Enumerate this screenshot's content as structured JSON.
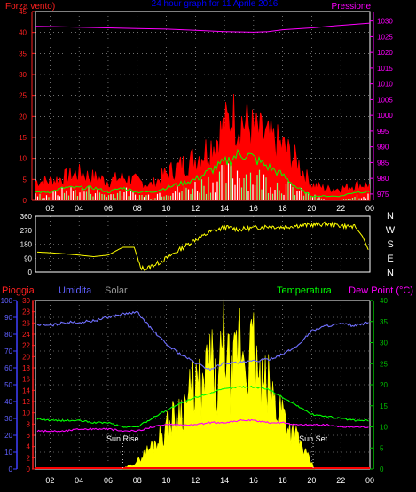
{
  "colors": {
    "wind": "#ff0000",
    "gust_fill": "#ff0000",
    "wind_avg": "#00ff00",
    "wind_low": "#ffffff",
    "wind_low2": "#80ff80",
    "pressure": "#ff00ff",
    "direction": "#ffff00",
    "humidity": "#7070ff",
    "solar": "#ffff00",
    "temperature": "#00ff00",
    "dewpoint": "#ff00ff",
    "rain": "#ff0000",
    "axis_rain": "#ff2020",
    "axis_humidity": "#4040ff",
    "axis_pressure": "#ff00ff",
    "axis_temp": "#00c000",
    "grid": "#ffffff",
    "text": "#ffffff",
    "title": "#0000ff"
  },
  "chart_data": [
    {
      "id": "wind-pressure",
      "type": "area",
      "title": "24 hour graph for 11 Aprile 2016",
      "left_label": "Forza vento",
      "left_label_suffix": ")",
      "right_label": "Pressione",
      "left_ticks": [
        "45",
        "40",
        "35",
        "30",
        "25",
        "20",
        "15",
        "10",
        "5",
        "0"
      ],
      "left_range": [
        0,
        45
      ],
      "right_ticks": [
        "1030",
        "1025",
        "1020",
        "1015",
        "1010",
        "1005",
        "1000",
        "995",
        "990",
        "985",
        "980",
        "975"
      ],
      "right_range": [
        973,
        1033
      ],
      "x_ticks": [
        "02",
        "04",
        "06",
        "08",
        "10",
        "12",
        "14",
        "16",
        "18",
        "20",
        "22",
        "00"
      ],
      "x_range": [
        1,
        24
      ],
      "series": [
        {
          "key": "pressure",
          "x": [
            1,
            2,
            4,
            6,
            8,
            10,
            12,
            14,
            16,
            17,
            18,
            20,
            22,
            24
          ],
          "values": [
            1028.3,
            1028.2,
            1028.0,
            1027.8,
            1027.6,
            1027.4,
            1027.0,
            1026.6,
            1026.4,
            1026.6,
            1027.2,
            1027.8,
            1028.6,
            1029.3
          ]
        },
        {
          "key": "gust",
          "x": [
            1,
            2,
            3,
            4,
            5,
            6,
            7,
            8,
            9,
            10,
            11,
            12,
            13,
            14,
            14.5,
            15,
            15.5,
            16,
            17,
            18,
            19,
            20,
            21,
            22,
            23,
            24
          ],
          "values": [
            5,
            5,
            6,
            7,
            6,
            5,
            6,
            5,
            4,
            7,
            9,
            11,
            14,
            19,
            22,
            21,
            20,
            18,
            16,
            14,
            10,
            4,
            3,
            3,
            4,
            4
          ]
        },
        {
          "key": "average",
          "x": [
            1,
            2,
            3,
            4,
            5,
            6,
            7,
            8,
            9,
            10,
            11,
            12,
            13,
            14,
            14.5,
            15,
            15.5,
            16,
            17,
            18,
            19,
            20,
            21,
            22,
            23,
            24
          ],
          "values": [
            2,
            2,
            3,
            3,
            3,
            2,
            3,
            2,
            2,
            3,
            4,
            5,
            7,
            9,
            10,
            11,
            11,
            10,
            8,
            6,
            3,
            1,
            1,
            1,
            2,
            2
          ]
        },
        {
          "key": "low",
          "x": [
            1,
            2,
            3,
            4,
            5,
            6,
            7,
            8,
            9,
            10,
            11,
            12,
            13,
            14,
            15,
            16,
            17,
            18,
            19,
            20,
            21,
            22,
            23,
            24
          ],
          "values": [
            1,
            1,
            2,
            2,
            2,
            1,
            2,
            1,
            1,
            2,
            2,
            3,
            4,
            5,
            6,
            5,
            4,
            3,
            2,
            1,
            0,
            0,
            1,
            1
          ]
        }
      ]
    },
    {
      "id": "direction",
      "type": "line",
      "left_ticks": [
        "360",
        "270",
        "180",
        "90",
        "0"
      ],
      "left_range": [
        0,
        360
      ],
      "right_ticks": [
        "N",
        "W",
        "S",
        "E",
        "N"
      ],
      "x_range": [
        1,
        24
      ],
      "series": [
        {
          "key": "direction",
          "x": [
            1,
            2,
            3,
            4,
            5,
            6,
            7,
            7.8,
            8.2,
            8.6,
            9,
            9.5,
            10,
            10.5,
            11,
            11.5,
            12,
            12.5,
            13,
            13.5,
            14,
            15,
            16,
            17,
            18,
            19,
            20,
            21,
            22,
            23,
            23.5,
            24
          ],
          "values": [
            130,
            125,
            118,
            110,
            100,
            110,
            160,
            160,
            30,
            20,
            40,
            60,
            90,
            120,
            150,
            180,
            210,
            230,
            260,
            270,
            290,
            275,
            285,
            295,
            290,
            300,
            305,
            310,
            300,
            290,
            230,
            120
          ]
        }
      ]
    },
    {
      "id": "climate",
      "type": "line",
      "label_rain": "Pioggia",
      "label_humidity": "Umidita",
      "label_solar": "Solar",
      "label_temp": "Temperatura",
      "label_dew": "Dew Point (°C)",
      "sunrise_label": "Sun Rise",
      "sunset_label": "Sun Set",
      "sunrise_x": 7.0,
      "sunset_x": 20.1,
      "humidity_ticks": [
        "100",
        "90",
        "80",
        "70",
        "60",
        "50",
        "40",
        "30",
        "20",
        "10",
        "0"
      ],
      "humidity_range": [
        0,
        100
      ],
      "rain_ticks": [
        "30",
        "28",
        "26",
        "24",
        "22",
        "20",
        "18",
        "16",
        "14",
        "12",
        "10",
        "8",
        "6",
        "4",
        "2",
        "0"
      ],
      "rain_range": [
        0,
        30
      ],
      "temp_ticks": [
        "40",
        "35",
        "30",
        "25",
        "20",
        "15",
        "10",
        "5",
        "0"
      ],
      "temp_range": [
        0,
        40
      ],
      "x_ticks": [
        "02",
        "04",
        "06",
        "08",
        "10",
        "12",
        "14",
        "16",
        "18",
        "20",
        "22",
        "00"
      ],
      "x_range": [
        1,
        24
      ],
      "series": [
        {
          "key": "humidity",
          "x": [
            1,
            2,
            3,
            4,
            5,
            6,
            7,
            8,
            9,
            10,
            11,
            12,
            13,
            14,
            15,
            16,
            17,
            18,
            19,
            20,
            21,
            22,
            23,
            24
          ],
          "values": [
            86,
            85,
            87,
            87,
            88,
            90,
            92,
            93,
            83,
            74,
            68,
            63,
            59,
            63,
            63,
            64,
            65,
            68,
            73,
            82,
            85,
            86,
            85,
            87
          ]
        },
        {
          "key": "temperature",
          "x": [
            1,
            2,
            3,
            4,
            5,
            6,
            7,
            8,
            9,
            10,
            11,
            12,
            13,
            14,
            15,
            16,
            17,
            18,
            19,
            20,
            21,
            22,
            23,
            24
          ],
          "values": [
            12,
            11.5,
            11.5,
            11.5,
            11,
            11,
            10,
            10,
            12,
            14,
            15.5,
            17,
            18,
            19,
            19.5,
            19.5,
            19,
            17,
            15,
            13,
            12.5,
            12,
            11.5,
            11.5
          ]
        },
        {
          "key": "dewpoint",
          "x": [
            1,
            2,
            3,
            4,
            5,
            6,
            7,
            8,
            9,
            10,
            11,
            12,
            13,
            14,
            15,
            16,
            17,
            18,
            19,
            20,
            21,
            22,
            23,
            24
          ],
          "values": [
            9,
            9,
            9,
            9.5,
            9.5,
            9.5,
            9,
            9,
            10,
            10.5,
            10.5,
            10.5,
            11,
            11,
            11.5,
            11.5,
            11,
            11,
            10.5,
            10.5,
            10.5,
            10,
            10,
            10
          ]
        },
        {
          "key": "solar",
          "x": [
            7,
            8,
            9,
            10,
            10.5,
            11,
            11.5,
            12,
            12.5,
            13,
            13.5,
            14,
            14.5,
            15,
            15.5,
            16,
            16.5,
            17,
            17.5,
            18,
            18.5,
            19,
            19.5,
            20,
            20.2
          ],
          "values": [
            0,
            5,
            16,
            28,
            36,
            42,
            48,
            60,
            52,
            78,
            50,
            92,
            55,
            93,
            75,
            82,
            55,
            58,
            45,
            42,
            28,
            22,
            12,
            4,
            0
          ]
        }
      ]
    }
  ]
}
